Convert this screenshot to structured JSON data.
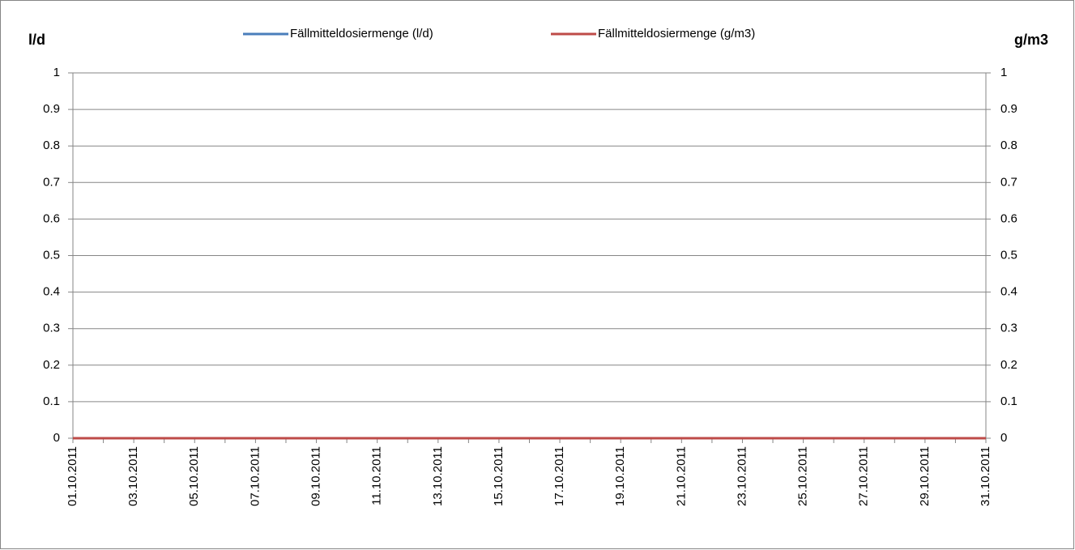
{
  "chart_data": {
    "type": "line",
    "y_label": "l/d",
    "y2_label": "g/m3",
    "categories": [
      "01.10.2011",
      null,
      "03.10.2011",
      null,
      "05.10.2011",
      null,
      "07.10.2011",
      null,
      "09.10.2011",
      null,
      "11.10.2011",
      null,
      "13.10.2011",
      null,
      "15.10.2011",
      null,
      "17.10.2011",
      null,
      "19.10.2011",
      null,
      "21.10.2011",
      null,
      "23.10.2011",
      null,
      "25.10.2011",
      null,
      "27.10.2011",
      null,
      "29.10.2011",
      null,
      "31.10.2011"
    ],
    "series": [
      {
        "name": "Fällmitteldosiermenge (l/d)",
        "color": "#4a7ebb",
        "values": [
          0,
          0,
          0,
          0,
          0,
          0,
          0,
          0,
          0,
          0,
          0,
          0,
          0,
          0,
          0,
          0,
          0,
          0,
          0,
          0,
          0,
          0,
          0,
          0,
          0,
          0,
          0,
          0,
          0,
          0,
          0
        ]
      },
      {
        "name": "Fällmitteldosiermenge (g/m3)",
        "color": "#be4b48",
        "axis": "y2",
        "values": [
          0,
          0,
          0,
          0,
          0,
          0,
          0,
          0,
          0,
          0,
          0,
          0,
          0,
          0,
          0,
          0,
          0,
          0,
          0,
          0,
          0,
          0,
          0,
          0,
          0,
          0,
          0,
          0,
          0,
          0,
          0
        ]
      }
    ],
    "ylim": [
      0,
      1
    ],
    "yticks": [
      0,
      0.1,
      0.2,
      0.3,
      0.4,
      0.5,
      0.6,
      0.7,
      0.8,
      0.9,
      1
    ],
    "y2lim": [
      0,
      1
    ],
    "y2ticks": [
      0,
      0.1,
      0.2,
      0.3,
      0.4,
      0.5,
      0.6,
      0.7,
      0.8,
      0.9,
      1
    ],
    "grid": true,
    "legend": "top"
  }
}
